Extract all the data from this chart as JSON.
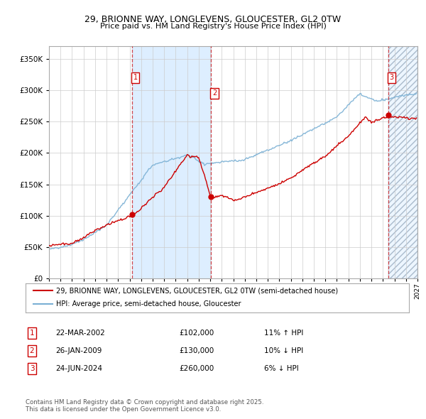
{
  "title": "29, BRIONNE WAY, LONGLEVENS, GLOUCESTER, GL2 0TW",
  "subtitle": "Price paid vs. HM Land Registry's House Price Index (HPI)",
  "legend_line1": "29, BRIONNE WAY, LONGLEVENS, GLOUCESTER, GL2 0TW (semi-detached house)",
  "legend_line2": "HPI: Average price, semi-detached house, Gloucester",
  "transaction1_date": "22-MAR-2002",
  "transaction1_price": "£102,000",
  "transaction1_hpi": "11% ↑ HPI",
  "transaction1_year": 2002.22,
  "transaction1_value": 102000,
  "transaction2_date": "26-JAN-2009",
  "transaction2_price": "£130,000",
  "transaction2_hpi": "10% ↓ HPI",
  "transaction2_year": 2009.07,
  "transaction2_value": 130000,
  "transaction3_date": "24-JUN-2024",
  "transaction3_price": "£260,000",
  "transaction3_hpi": "6% ↓ HPI",
  "transaction3_year": 2024.48,
  "transaction3_value": 260000,
  "ylim": [
    0,
    370000
  ],
  "xlim_start": 1995,
  "xlim_end": 2027,
  "price_color": "#cc0000",
  "hpi_color": "#7ab0d4",
  "background_color": "#ffffff",
  "shading_color": "#ddeeff",
  "footnote": "Contains HM Land Registry data © Crown copyright and database right 2025.\nThis data is licensed under the Open Government Licence v3.0."
}
